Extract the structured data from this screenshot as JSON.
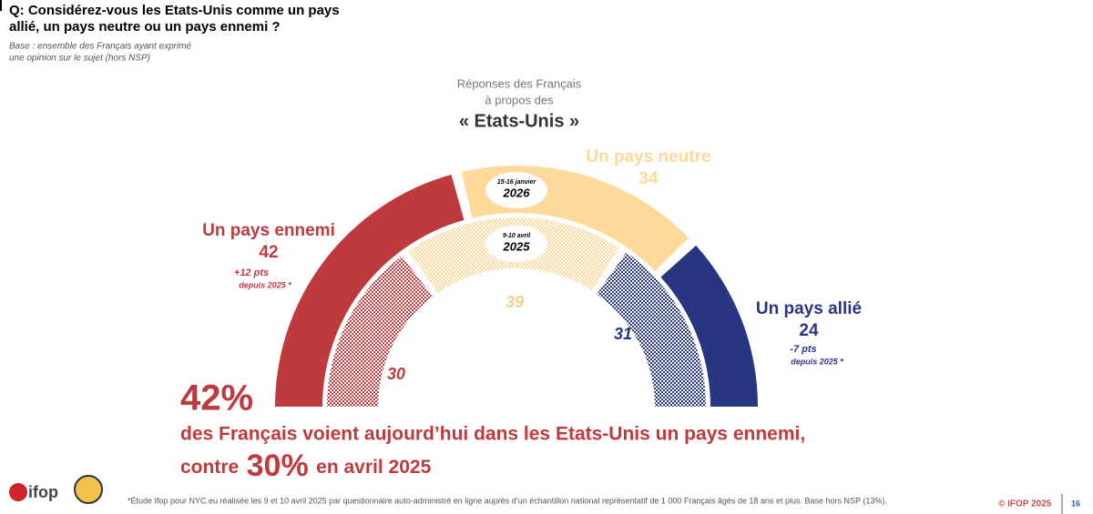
{
  "question": [
    "Q: Considérez-vous les Etats-Unis comme un pays",
    "allié, un pays neutre ou un pays ennemi ?"
  ],
  "base": [
    "Base : ensemble des Français ayant exprimé",
    "une opinion sur le sujet (hors NSP)"
  ],
  "chart_data": {
    "type": "half-donut",
    "title": [
      "Réponses des Français",
      "à propos des",
      "« Etats-Unis »"
    ],
    "categories": [
      "Un pays ennemi",
      "Un pays neutre",
      "Un pays allié"
    ],
    "colors": [
      "#bf3a3c",
      "#fdd99a",
      "#283583"
    ],
    "series": [
      {
        "name": "2026",
        "date": "15-16 janvier",
        "values": [
          42,
          34,
          24
        ]
      },
      {
        "name": "2025",
        "date": "9-10 avril",
        "values": [
          30,
          39,
          31
        ],
        "pattern": "checker"
      }
    ],
    "annotations": [
      {
        "category": 0,
        "lines": [
          "+12 pts",
          "depuis 2025 *"
        ]
      },
      {
        "category": 2,
        "lines": [
          "-7 pts",
          "depuis 2025 *"
        ]
      }
    ]
  },
  "headline": {
    "big": "42%",
    "line1": "des Français voient aujourd’hui dans les Etats-Unis un pays ennemi,",
    "line2": [
      "contre",
      "30%",
      "en avril 2025"
    ]
  },
  "footnote": "*Étude Ifop pour NYC.eu réalisée les 9 et 10 avril 2025 par questionnaire auto-administré en ligne auprès d’un échantillon national représentatif de 1 000 Français âgés de 18 ans et plus. Base hors NSP (13%).",
  "logo": "ifop",
  "copyright": "© IFOP 2025",
  "page_number": "16"
}
